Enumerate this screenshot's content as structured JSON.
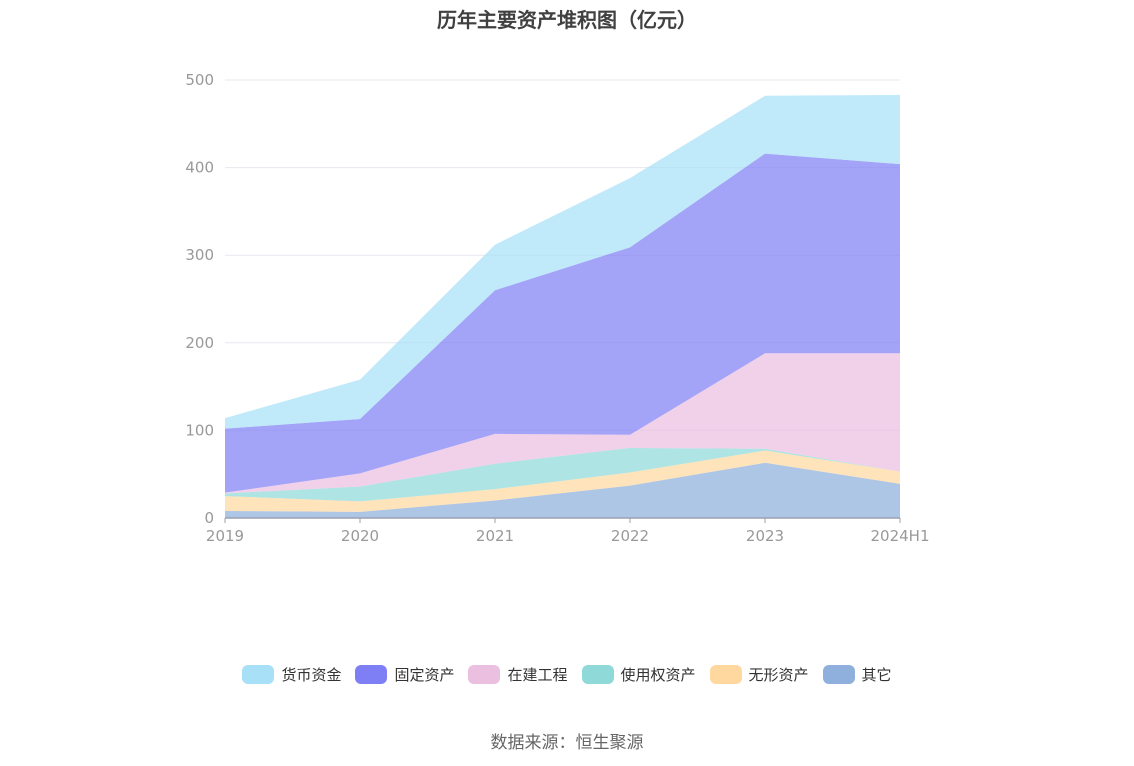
{
  "title": "历年主要资产堆积图（亿元）",
  "source": "数据来源：恒生聚源",
  "chart_data": {
    "type": "area",
    "stacked": true,
    "categories": [
      "2019",
      "2020",
      "2021",
      "2022",
      "2023",
      "2024H1"
    ],
    "ylim": [
      0,
      500
    ],
    "yticks": [
      0,
      100,
      200,
      300,
      400,
      500
    ],
    "grid": true,
    "legend_position": "bottom",
    "series": [
      {
        "name": "其它",
        "color": "#8fb0dc",
        "values": [
          8,
          7,
          20,
          37,
          63,
          39
        ]
      },
      {
        "name": "无形资产",
        "color": "#ffd8a0",
        "values": [
          17,
          12,
          13,
          15,
          14,
          14
        ]
      },
      {
        "name": "使用权资产",
        "color": "#8fd9d9",
        "values": [
          3,
          17,
          29,
          28,
          2,
          0
        ]
      },
      {
        "name": "在建工程",
        "color": "#ebbfe0",
        "values": [
          1,
          15,
          34,
          15,
          109,
          135
        ]
      },
      {
        "name": "固定资产",
        "color": "#7f7ff5",
        "values": [
          73,
          62,
          164,
          214,
          228,
          216
        ]
      },
      {
        "name": "货币资金",
        "color": "#a8e0f8",
        "values": [
          12,
          45,
          52,
          79,
          66,
          79
        ]
      }
    ]
  },
  "legend_order": [
    "货币资金",
    "固定资产",
    "在建工程",
    "使用权资产",
    "无形资产",
    "其它"
  ]
}
